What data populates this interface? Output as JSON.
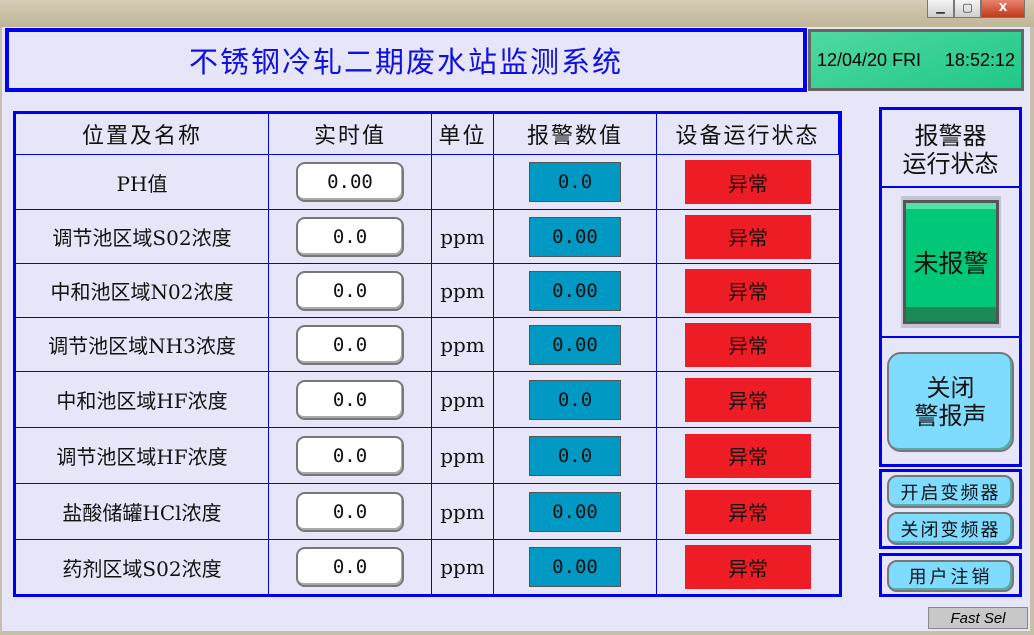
{
  "window": {
    "minimize": "▁",
    "maximize": "▢",
    "close": "X"
  },
  "header": {
    "title": "不锈钢冷轧二期废水站监测系统",
    "date": "12/04/20 FRI",
    "time": "18:52:12"
  },
  "table": {
    "columns": [
      "位置及名称",
      "实时值",
      "单位",
      "报警数值",
      "设备运行状态"
    ],
    "rows": [
      {
        "name": "PH值",
        "value": "0.00",
        "unit": "",
        "alarm": "0.0",
        "status": "异常"
      },
      {
        "name": "调节池区域S02浓度",
        "value": "0.0",
        "unit": "ppm",
        "alarm": "0.00",
        "status": "异常"
      },
      {
        "name": "中和池区域N02浓度",
        "value": "0.0",
        "unit": "ppm",
        "alarm": "0.00",
        "status": "异常"
      },
      {
        "name": "调节池区域NH3浓度",
        "value": "0.0",
        "unit": "ppm",
        "alarm": "0.00",
        "status": "异常"
      },
      {
        "name": "中和池区域HF浓度",
        "value": "0.0",
        "unit": "ppm",
        "alarm": "0.0",
        "status": "异常"
      },
      {
        "name": "调节池区域HF浓度",
        "value": "0.0",
        "unit": "ppm",
        "alarm": "0.0",
        "status": "异常"
      },
      {
        "name": "盐酸储罐HCl浓度",
        "value": "0.0",
        "unit": "ppm",
        "alarm": "0.00",
        "status": "异常"
      },
      {
        "name": "药剂区域S02浓度",
        "value": "0.0",
        "unit": "ppm",
        "alarm": "0.00",
        "status": "异常"
      }
    ]
  },
  "alarm_panel": {
    "title_line1": "报警器",
    "title_line2": "运行状态",
    "indicator": "未报警",
    "indicator_color": "#00c878",
    "silence_line1": "关闭",
    "silence_line2": "警报声"
  },
  "controls": {
    "start_vfd": "开启变频器",
    "stop_vfd": "关闭变频器",
    "logout": "用户注销"
  },
  "footer": {
    "fast_sel": "Fast Sel"
  },
  "colors": {
    "border": "#0000ee",
    "status_abnormal": "#ee1c24",
    "alarm_value_bg": "#0099c4"
  }
}
